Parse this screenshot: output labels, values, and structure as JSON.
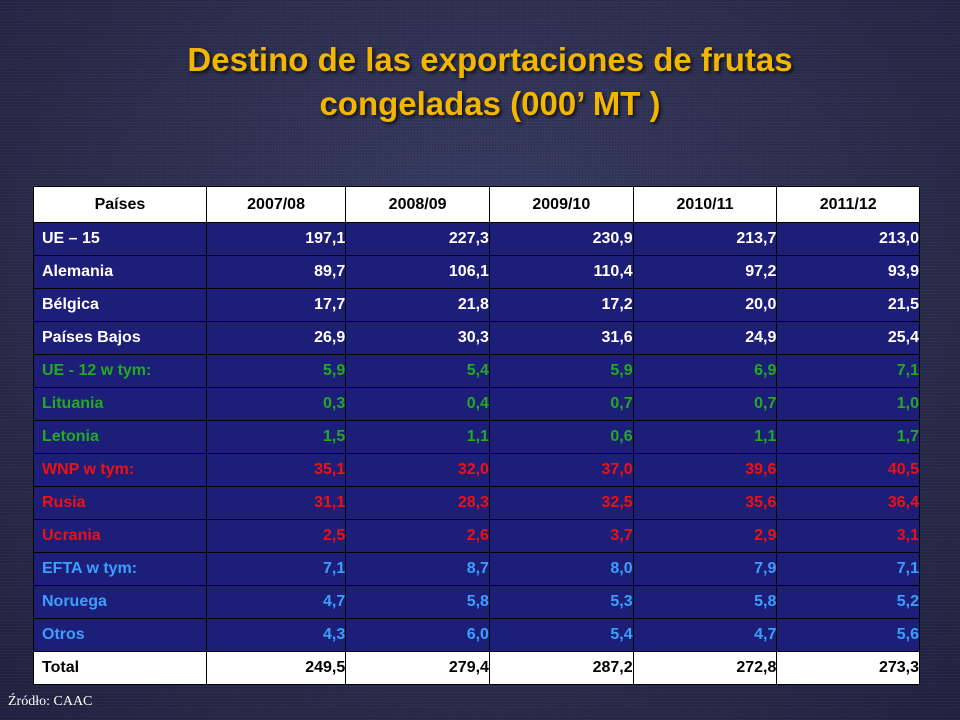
{
  "title_line1": "Destino de las exportaciones de frutas",
  "title_line2": "congeladas (000’ MT )",
  "colors": {
    "title": "#f2b600",
    "table_bg": "#1c1e78",
    "white_text": "#ffffff",
    "green_text": "#22aa22",
    "red_text": "#ee1111",
    "blue_text": "#3aa0ff"
  },
  "table": {
    "headers": [
      "Países",
      "2007/08",
      "2008/09",
      "2009/10",
      "2010/11",
      "2011/12"
    ],
    "rows": [
      {
        "group": "white",
        "cells": [
          "UE – 15",
          "197,1",
          "227,3",
          "230,9",
          "213,7",
          "213,0"
        ]
      },
      {
        "group": "white",
        "cells": [
          "Alemania",
          "89,7",
          "106,1",
          "110,4",
          "97,2",
          "93,9"
        ]
      },
      {
        "group": "white",
        "cells": [
          "Bélgica",
          "17,7",
          "21,8",
          "17,2",
          "20,0",
          "21,5"
        ]
      },
      {
        "group": "white",
        "cells": [
          "Países Bajos",
          "26,9",
          "30,3",
          "31,6",
          "24,9",
          "25,4"
        ]
      },
      {
        "group": "green",
        "cells": [
          "UE - 12 w tym:",
          "5,9",
          "5,4",
          "5,9",
          "6,9",
          "7,1"
        ]
      },
      {
        "group": "green",
        "cells": [
          "Lituania",
          "0,3",
          "0,4",
          "0,7",
          "0,7",
          "1,0"
        ]
      },
      {
        "group": "green",
        "cells": [
          "Letonia",
          "1,5",
          "1,1",
          "0,6",
          "1,1",
          "1,7"
        ]
      },
      {
        "group": "red",
        "cells": [
          "WNP w tym:",
          "35,1",
          "32,0",
          "37,0",
          "39,6",
          "40,5"
        ]
      },
      {
        "group": "red",
        "cells": [
          "Rusia",
          "31,1",
          "28,3",
          "32,5",
          "35,6",
          "36,4"
        ]
      },
      {
        "group": "red",
        "cells": [
          "Ucrania",
          "2,5",
          "2,6",
          "3,7",
          "2,9",
          "3,1"
        ]
      },
      {
        "group": "blue",
        "cells": [
          "EFTA w tym:",
          "7,1",
          "8,7",
          "8,0",
          "7,9",
          "7,1"
        ]
      },
      {
        "group": "blue",
        "cells": [
          "Noruega",
          "4,7",
          "5,8",
          "5,3",
          "5,8",
          "5,2"
        ]
      },
      {
        "group": "blue",
        "cells": [
          "Otros",
          "4,3",
          "6,0",
          "5,4",
          "4,7",
          "5,6"
        ]
      },
      {
        "group": "total",
        "cells": [
          "Total",
          "249,5",
          "279,4",
          "287,2",
          "272,8",
          "273,3"
        ]
      }
    ]
  },
  "source": "Źródło: CAAC"
}
